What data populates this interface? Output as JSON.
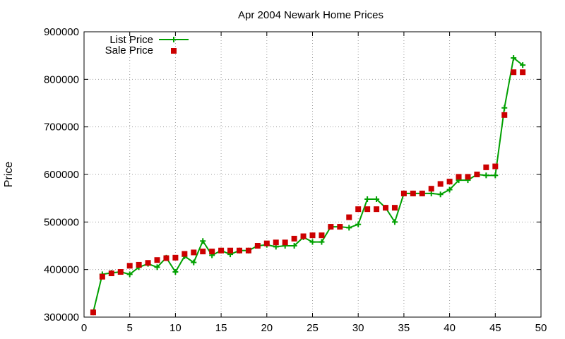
{
  "chart_data": {
    "type": "line",
    "title": "Apr 2004 Newark Home Prices",
    "xlabel": "",
    "ylabel": "Price",
    "xlim": [
      0,
      50
    ],
    "ylim": [
      300000,
      900000
    ],
    "xticks": [
      0,
      5,
      10,
      15,
      20,
      25,
      30,
      35,
      40,
      45,
      50
    ],
    "yticks": [
      300000,
      400000,
      500000,
      600000,
      700000,
      800000,
      900000
    ],
    "grid": true,
    "legend_position": "top-left",
    "series": [
      {
        "name": "List Price",
        "style": "line-with-plus-markers",
        "color": "#00a000",
        "x": [
          1,
          2,
          3,
          4,
          5,
          6,
          7,
          8,
          9,
          10,
          11,
          12,
          13,
          14,
          15,
          16,
          17,
          18,
          19,
          20,
          21,
          22,
          23,
          24,
          25,
          26,
          27,
          28,
          29,
          30,
          31,
          32,
          33,
          34,
          35,
          36,
          37,
          38,
          39,
          40,
          41,
          42,
          43,
          44,
          45,
          46,
          47,
          48
        ],
        "values": [
          310000,
          390000,
          393000,
          395000,
          390000,
          405000,
          412000,
          405000,
          425000,
          395000,
          428000,
          415000,
          460000,
          430000,
          440000,
          432000,
          440000,
          440000,
          450000,
          452000,
          448000,
          450000,
          450000,
          468000,
          458000,
          458000,
          490000,
          490000,
          488000,
          495000,
          548000,
          548000,
          530000,
          500000,
          560000,
          560000,
          560000,
          560000,
          558000,
          568000,
          588000,
          588000,
          600000,
          598000,
          598000,
          740000,
          845000,
          830000
        ]
      },
      {
        "name": "Sale Price",
        "style": "square-markers",
        "color": "#cc0000",
        "x": [
          1,
          2,
          3,
          4,
          5,
          6,
          7,
          8,
          9,
          10,
          11,
          12,
          13,
          14,
          15,
          16,
          17,
          18,
          19,
          20,
          21,
          22,
          23,
          24,
          25,
          26,
          27,
          28,
          29,
          30,
          31,
          32,
          33,
          34,
          35,
          36,
          37,
          38,
          39,
          40,
          41,
          42,
          43,
          44,
          45,
          46,
          47,
          48
        ],
        "values": [
          310000,
          385000,
          392000,
          395000,
          408000,
          410000,
          414000,
          420000,
          424000,
          425000,
          433000,
          436000,
          438000,
          438000,
          440000,
          440000,
          440000,
          440000,
          450000,
          455000,
          457000,
          457000,
          465000,
          470000,
          472000,
          472000,
          490000,
          490000,
          510000,
          527000,
          527000,
          527000,
          530000,
          530000,
          560000,
          560000,
          560000,
          570000,
          580000,
          585000,
          595000,
          595000,
          600000,
          615000,
          617000,
          725000,
          815000,
          815000
        ]
      }
    ]
  }
}
